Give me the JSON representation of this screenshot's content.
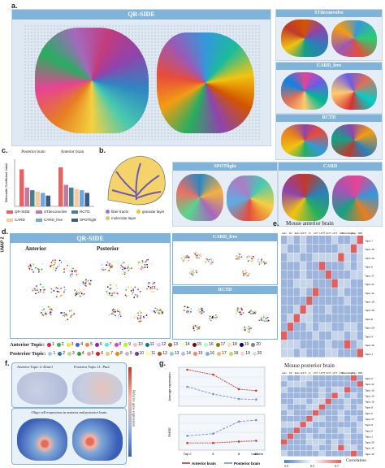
{
  "panels": {
    "a": "a.",
    "b": "b.",
    "c": "c.",
    "d": "d.",
    "e": "e.",
    "f": "f.",
    "g": "g."
  },
  "panel_a": {
    "main_title": "QR-SIDE",
    "methods": [
      "STdeconvolve",
      "CARD_free",
      "RCTD"
    ]
  },
  "panel_b": {
    "methods": [
      "SPOTlight",
      "CARD"
    ],
    "legend": [
      "fiber tracts",
      "granular layer",
      "molecular layer"
    ],
    "legend_colors": [
      "#8e7cc3",
      "#f1c232",
      "#e0c070"
    ]
  },
  "panel_c": {
    "groups": [
      "Posterior brain",
      "Anterior brain"
    ],
    "ylabel": "Silhouette Coefficient Value",
    "legend": [
      "QR-SIDE",
      "STdeconvolve",
      "RCTD",
      "CARD",
      "CARD_free",
      "SPOTlight"
    ],
    "colors": [
      "#e06666",
      "#c27ba0",
      "#45818e",
      "#f9cb9c",
      "#6fa8dc",
      "#3d5a80"
    ],
    "chart_data": {
      "type": "bar",
      "categories": [
        "Posterior brain",
        "Anterior brain"
      ],
      "series": [
        {
          "name": "QR-SIDE",
          "values": [
            0.55,
            0.58
          ]
        },
        {
          "name": "STdeconvolve",
          "values": [
            0.28,
            0.32
          ]
        },
        {
          "name": "RCTD",
          "values": [
            0.24,
            0.28
          ]
        },
        {
          "name": "CARD",
          "values": [
            0.22,
            0.26
          ]
        },
        {
          "name": "CARD_free",
          "values": [
            0.2,
            0.24
          ]
        },
        {
          "name": "SPOTlight",
          "values": [
            0.16,
            0.2
          ]
        }
      ],
      "ylim": [
        0,
        0.7
      ]
    }
  },
  "panel_d": {
    "main_title": "QR-SIDE",
    "ylabel": "UMAP 2",
    "anterior": "Anterior",
    "posterior": "Posterior",
    "methods": [
      "CARD_free",
      "RCTD"
    ],
    "anterior_topic_label": "Anterior Topic:",
    "posterior_topic_label": "Posterior Topic:",
    "topics": [
      "1",
      "2",
      "3",
      "4",
      "5",
      "6",
      "7",
      "8",
      "9",
      "10",
      "11",
      "12",
      "13",
      "14",
      "15",
      "16",
      "17",
      "18",
      "19",
      "20"
    ],
    "anterior_colors": [
      "#e6194b",
      "#3cb44b",
      "#ffe119",
      "#4363d8",
      "#f58231",
      "#911eb4",
      "#46f0f0",
      "#f032e6",
      "#bcf60c",
      "#fabebe",
      "#008080",
      "#e6beff",
      "#9a6324",
      "#fffac8",
      "#800000",
      "#aaffc3",
      "#808000",
      "#ffd8b1",
      "#000075",
      "#808080"
    ],
    "posterior_colors": [
      "#a6cee3",
      "#1f78b4",
      "#b2df8a",
      "#33a02c",
      "#fb9a99",
      "#e31a1c",
      "#fdbf6f",
      "#ff7f00",
      "#cab2d6",
      "#6a3d9a",
      "#ffff99",
      "#b15928",
      "#8dd3c7",
      "#bebada",
      "#fb8072",
      "#80b1d3",
      "#fdb462",
      "#b3de69",
      "#fccde5",
      "#d9d9d9"
    ]
  },
  "panel_e": {
    "anterior_title": "Mouse anterior brain",
    "posterior_title": "Mouse posterior brain",
    "anterior_cols": [
      "Astro",
      "Chl",
      "Endo",
      "L2/3 IT",
      "L4",
      "L5 IT",
      "L5 PT",
      "L6 CT",
      "L6 IT",
      "L6b",
      "Macrophage",
      "Oligo",
      "SMC"
    ],
    "anterior_rows": [
      "Topic 7",
      "Topic 16",
      "Topic 10",
      "Topic 6",
      "Topic 17",
      "Topic 13",
      "Topic 14",
      "Topic 18",
      "Topic 15",
      "Topic 8",
      "Topic 20",
      "Topic 4",
      "Topic 19",
      "Topic 1"
    ],
    "posterior_cols": [
      "Astro",
      "CR",
      "Endo",
      "L2/3 IT",
      "L4",
      "L5 IT",
      "L5 PT",
      "L6 CT",
      "L6 IT",
      "L6b",
      "Macrophage",
      "Oligo",
      "SMC"
    ],
    "posterior_rows": [
      "Topic 2",
      "Topic 13",
      "Topic 16",
      "Topic 19",
      "Topic 15",
      "Topic 8",
      "Topic 6",
      "Topic 17",
      "Topic 9",
      "Topic 5",
      "Topic 1",
      "Topic 20",
      "Topic 14",
      "Topic 12"
    ],
    "colorbar_label": "Correlation",
    "colorbar_ticks": [
      "0.0",
      "0.5",
      "0.7"
    ]
  },
  "panel_f": {
    "anterior_label": "Anterior Topic 2:",
    "anterior_gene": "Zeme1",
    "posterior_label": "Posterior Topic 11:",
    "posterior_gene": "Pat2",
    "colorbar_label": "Relative gene expression",
    "oligo_title": "Oligo cell expression in anterior and posterior brain"
  },
  "panel_g": {
    "top_ylabel": "Average expression",
    "bottom_ylabel": "RMSE",
    "xlabel": "markers",
    "xticks": [
      "Top 2",
      "5",
      "8",
      "10"
    ],
    "legend": [
      "Anterior brain",
      "Posterior brain"
    ],
    "colors": [
      "#c0392b",
      "#6f8fd0"
    ],
    "chart_data": [
      {
        "type": "line",
        "x": [
          2,
          5,
          8,
          10
        ],
        "series": [
          {
            "name": "Anterior brain",
            "values": [
              0.95,
              0.85,
              0.55,
              0.52
            ]
          },
          {
            "name": "Posterior brain",
            "values": [
              0.6,
              0.45,
              0.35,
              0.34
            ]
          }
        ]
      },
      {
        "type": "line",
        "x": [
          2,
          5,
          8,
          10
        ],
        "series": [
          {
            "name": "Anterior brain",
            "values": [
              0.2,
              0.2,
              0.22,
              0.23
            ]
          },
          {
            "name": "Posterior brain",
            "values": [
              0.3,
              0.33,
              0.5,
              0.52
            ]
          }
        ]
      }
    ]
  }
}
